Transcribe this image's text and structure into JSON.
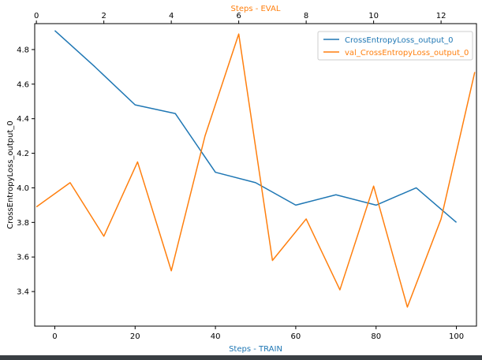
{
  "chart_data": {
    "type": "line",
    "ylabel": "CrossEntropyLoss_output_0",
    "xlabel_bottom": "Steps - TRAIN",
    "xlabel_top": "Steps - EVAL",
    "xlim_bottom": [
      -5,
      105
    ],
    "xlim_top": [
      -0.05,
      13.05
    ],
    "ylim": [
      3.2,
      4.95
    ],
    "xticks_bottom": [
      0,
      20,
      40,
      60,
      80,
      100
    ],
    "xticks_top": [
      0,
      2,
      4,
      6,
      8,
      10,
      12
    ],
    "yticks": [
      3.4,
      3.6,
      3.8,
      4.0,
      4.2,
      4.4,
      4.6,
      4.8
    ],
    "grid": false,
    "legend_position": "top-right",
    "series": [
      {
        "name": "CrossEntropyLoss_output_0",
        "axis": "bottom",
        "color": "#1f77b4",
        "x": [
          0,
          10,
          20,
          30,
          40,
          50,
          60,
          70,
          80,
          90,
          100
        ],
        "y": [
          4.91,
          4.7,
          4.48,
          4.43,
          4.09,
          4.03,
          3.9,
          3.96,
          3.9,
          4.0,
          3.8
        ]
      },
      {
        "name": "val_CrossEntropyLoss_output_0",
        "axis": "top",
        "color": "#ff7f0e",
        "x": [
          0,
          1,
          2,
          3,
          4,
          5,
          6,
          7,
          8,
          9,
          10,
          11,
          12,
          13
        ],
        "y": [
          3.89,
          4.03,
          3.72,
          4.15,
          3.52,
          4.3,
          4.89,
          3.58,
          3.82,
          3.41,
          4.01,
          3.31,
          3.82,
          4.67
        ]
      }
    ]
  }
}
